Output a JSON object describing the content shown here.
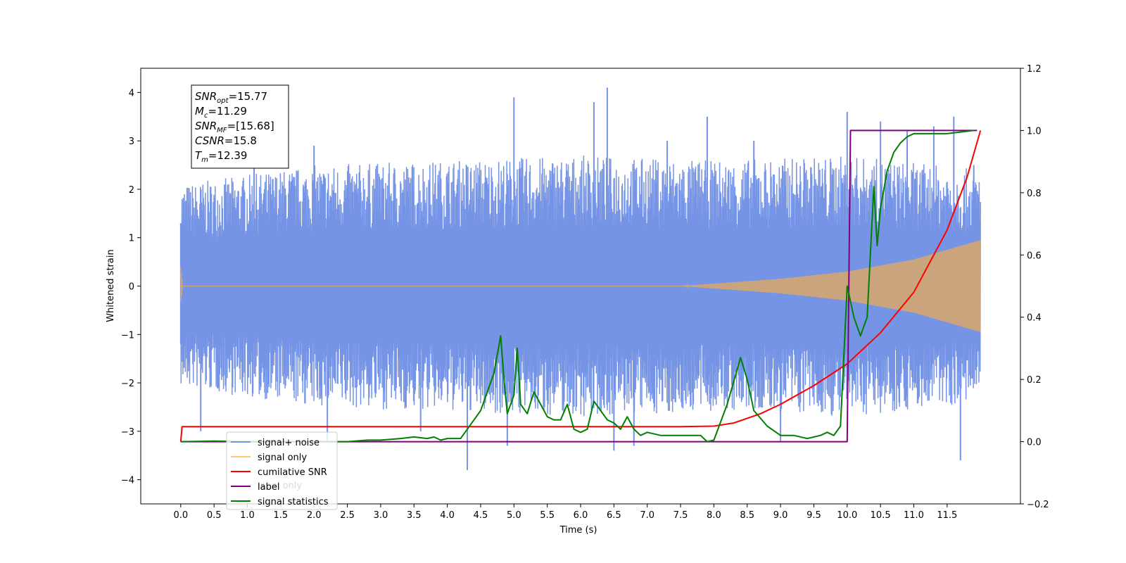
{
  "chart_data": {
    "type": "line",
    "xlabel": "Time (s)",
    "ylabel": "Whitened strain",
    "xlim": [
      -0.6,
      12.6
    ],
    "ylim": [
      -4.5,
      4.5
    ],
    "ylim_right": [
      -0.2,
      1.2
    ],
    "x_ticks": [
      0.0,
      0.5,
      1.0,
      1.5,
      2.0,
      2.5,
      3.0,
      3.5,
      4.0,
      4.5,
      5.0,
      5.5,
      6.0,
      6.5,
      7.0,
      7.5,
      8.0,
      8.5,
      9.0,
      9.5,
      10.0,
      10.5,
      11.0,
      11.5
    ],
    "x_tick_labels": [
      "0.0",
      "0.5",
      "1.0",
      "1.5",
      "2.0",
      "2.5",
      "3.0",
      "3.5",
      "4.0",
      "4.5",
      "5.0",
      "5.5",
      "6.0",
      "6.5",
      "7.0",
      "7.5",
      "8.0",
      "8.5",
      "9.0",
      "9.5",
      "10.0",
      "10.5",
      "11.0",
      "11.5"
    ],
    "y_ticks": [
      -4,
      -3,
      -2,
      -1,
      0,
      1,
      2,
      3,
      4
    ],
    "y_tick_labels": [
      "−4",
      "−3",
      "−2",
      "−1",
      "0",
      "1",
      "2",
      "3",
      "4"
    ],
    "y_right_ticks": [
      -0.2,
      0.0,
      0.2,
      0.4,
      0.6,
      0.8,
      1.0,
      1.2
    ],
    "y_right_tick_labels": [
      "−0.2",
      "0.0",
      "0.2",
      "0.4",
      "0.6",
      "0.8",
      "1.0",
      "1.2"
    ],
    "grid": false,
    "legend_position": "bottom-left",
    "legend": [
      "signal+ noise",
      "signal only",
      "cumilative SNR",
      "label",
      "signal statistics"
    ],
    "hidden_legend_entry": "label only",
    "annotation": [
      {
        "main": "SNR",
        "sub": "opt",
        "value": "=15.77"
      },
      {
        "main": "M",
        "sub": "c",
        "value": "=11.29"
      },
      {
        "main": "SNR",
        "sub": "MF",
        "value": "=[15.68]"
      },
      {
        "main": "CSNR",
        "sub": "",
        "value": "=15.8"
      },
      {
        "main": "T",
        "sub": "m",
        "value": "=12.39"
      }
    ],
    "series": [
      {
        "name": "signal+ noise",
        "axis": "left",
        "color": "#7694e6",
        "x_range": [
          0.0,
          12.0
        ],
        "envelope_upper": [
          [
            0.0,
            2.1
          ],
          [
            2.0,
            2.5
          ],
          [
            4.0,
            2.6
          ],
          [
            6.0,
            2.7
          ],
          [
            8.0,
            2.6
          ],
          [
            10.0,
            2.7
          ],
          [
            12.0,
            2.4
          ]
        ],
        "envelope_lower": [
          [
            0.0,
            -2.1
          ],
          [
            2.0,
            -2.5
          ],
          [
            4.0,
            -2.6
          ],
          [
            6.0,
            -2.7
          ],
          [
            8.0,
            -2.6
          ],
          [
            10.0,
            -2.7
          ],
          [
            12.0,
            -2.4
          ]
        ],
        "spikes": [
          [
            0.0,
            1.3
          ],
          [
            0.0,
            -1.2
          ],
          [
            0.3,
            -3.0
          ],
          [
            1.1,
            2.5
          ],
          [
            2.0,
            2.9
          ],
          [
            2.2,
            -3.2
          ],
          [
            3.6,
            -3.0
          ],
          [
            4.3,
            -3.8
          ],
          [
            4.9,
            -3.3
          ],
          [
            5.0,
            3.9
          ],
          [
            6.2,
            3.8
          ],
          [
            6.4,
            4.1
          ],
          [
            6.5,
            -3.4
          ],
          [
            6.8,
            -3.3
          ],
          [
            7.3,
            3.0
          ],
          [
            7.9,
            3.5
          ],
          [
            8.6,
            3.0
          ],
          [
            9.0,
            -3.2
          ],
          [
            10.0,
            3.6
          ],
          [
            10.5,
            3.4
          ],
          [
            10.9,
            3.2
          ],
          [
            11.3,
            3.3
          ],
          [
            11.6,
            3.5
          ],
          [
            11.7,
            -3.6
          ],
          [
            11.9,
            2.5
          ]
        ]
      },
      {
        "name": "signal only",
        "axis": "left",
        "color": "#c9a47c",
        "x_range": [
          0.0,
          12.0
        ],
        "amplitude": [
          [
            0.0,
            0.4
          ],
          [
            0.03,
            0.0
          ],
          [
            7.5,
            0.0
          ],
          [
            8.0,
            0.05
          ],
          [
            9.0,
            0.15
          ],
          [
            10.0,
            0.3
          ],
          [
            11.0,
            0.55
          ],
          [
            11.5,
            0.75
          ],
          [
            12.0,
            0.95
          ]
        ]
      },
      {
        "name": "cumilative SNR",
        "axis": "right",
        "color": "#ff0000",
        "points": [
          [
            0.0,
            0.0
          ],
          [
            0.02,
            0.048
          ],
          [
            4.0,
            0.048
          ],
          [
            7.5,
            0.048
          ],
          [
            8.0,
            0.05
          ],
          [
            8.3,
            0.06
          ],
          [
            8.7,
            0.09
          ],
          [
            9.0,
            0.12
          ],
          [
            9.5,
            0.18
          ],
          [
            10.0,
            0.25
          ],
          [
            10.5,
            0.35
          ],
          [
            11.0,
            0.48
          ],
          [
            11.5,
            0.68
          ],
          [
            11.8,
            0.85
          ],
          [
            12.0,
            1.0
          ]
        ]
      },
      {
        "name": "label",
        "axis": "right",
        "color": "#800080",
        "points": [
          [
            0.0,
            0.0
          ],
          [
            10.0,
            0.0
          ],
          [
            10.05,
            1.0
          ],
          [
            11.95,
            1.0
          ]
        ]
      },
      {
        "name": "signal statistics",
        "axis": "right",
        "color": "#008000",
        "points": [
          [
            0.0,
            0.0
          ],
          [
            0.5,
            0.002
          ],
          [
            1.0,
            0.0
          ],
          [
            2.0,
            0.0
          ],
          [
            2.5,
            0.0
          ],
          [
            2.8,
            0.005
          ],
          [
            3.0,
            0.005
          ],
          [
            3.3,
            0.01
          ],
          [
            3.5,
            0.015
          ],
          [
            3.7,
            0.01
          ],
          [
            3.8,
            0.015
          ],
          [
            3.9,
            0.005
          ],
          [
            4.0,
            0.01
          ],
          [
            4.2,
            0.01
          ],
          [
            4.3,
            0.04
          ],
          [
            4.5,
            0.1
          ],
          [
            4.7,
            0.22
          ],
          [
            4.8,
            0.34
          ],
          [
            4.85,
            0.2
          ],
          [
            4.9,
            0.09
          ],
          [
            5.0,
            0.15
          ],
          [
            5.05,
            0.3
          ],
          [
            5.1,
            0.12
          ],
          [
            5.2,
            0.09
          ],
          [
            5.3,
            0.16
          ],
          [
            5.4,
            0.12
          ],
          [
            5.5,
            0.08
          ],
          [
            5.6,
            0.07
          ],
          [
            5.7,
            0.07
          ],
          [
            5.8,
            0.12
          ],
          [
            5.9,
            0.04
          ],
          [
            6.0,
            0.03
          ],
          [
            6.1,
            0.04
          ],
          [
            6.2,
            0.13
          ],
          [
            6.4,
            0.07
          ],
          [
            6.5,
            0.06
          ],
          [
            6.6,
            0.04
          ],
          [
            6.7,
            0.08
          ],
          [
            6.8,
            0.04
          ],
          [
            6.9,
            0.02
          ],
          [
            7.0,
            0.03
          ],
          [
            7.2,
            0.02
          ],
          [
            7.5,
            0.02
          ],
          [
            7.8,
            0.02
          ],
          [
            7.9,
            0.0
          ],
          [
            8.0,
            0.005
          ],
          [
            8.2,
            0.12
          ],
          [
            8.4,
            0.27
          ],
          [
            8.5,
            0.2
          ],
          [
            8.6,
            0.1
          ],
          [
            8.8,
            0.05
          ],
          [
            9.0,
            0.02
          ],
          [
            9.2,
            0.02
          ],
          [
            9.4,
            0.01
          ],
          [
            9.6,
            0.02
          ],
          [
            9.7,
            0.03
          ],
          [
            9.8,
            0.02
          ],
          [
            9.9,
            0.05
          ],
          [
            10.0,
            0.5
          ],
          [
            10.1,
            0.4
          ],
          [
            10.2,
            0.34
          ],
          [
            10.3,
            0.4
          ],
          [
            10.4,
            0.82
          ],
          [
            10.45,
            0.63
          ],
          [
            10.5,
            0.75
          ],
          [
            10.6,
            0.87
          ],
          [
            10.7,
            0.93
          ],
          [
            10.8,
            0.96
          ],
          [
            10.9,
            0.98
          ],
          [
            11.0,
            0.99
          ],
          [
            11.5,
            0.99
          ],
          [
            11.9,
            1.0
          ]
        ]
      }
    ]
  }
}
